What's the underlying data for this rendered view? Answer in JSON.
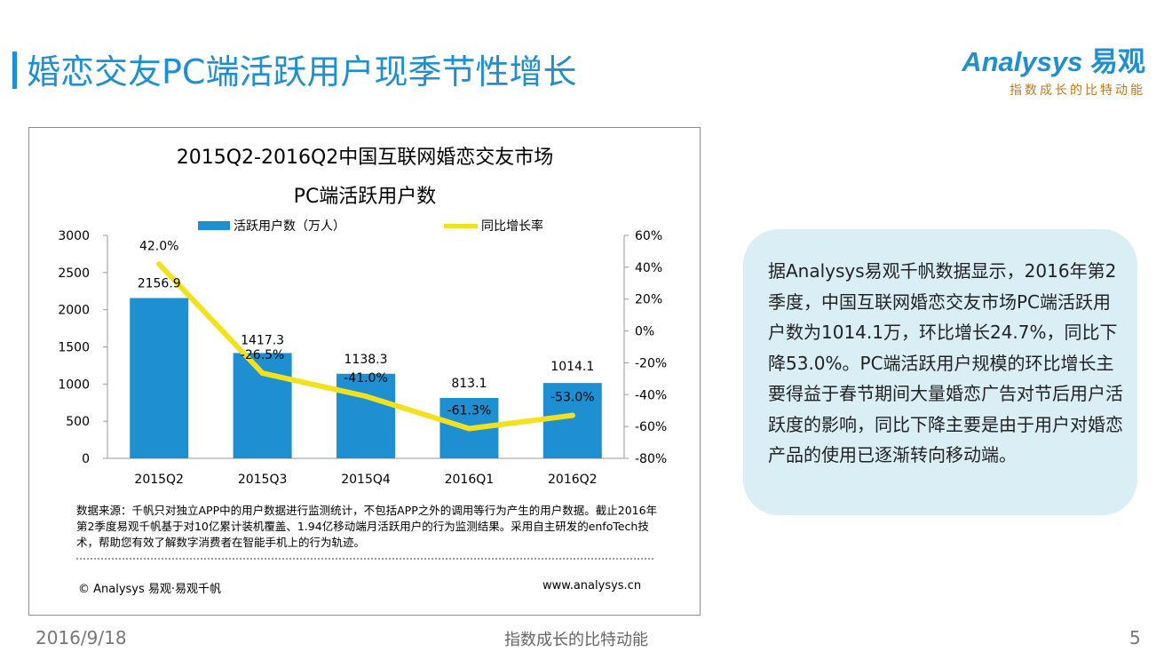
{
  "page": {
    "title": "婚恋交友PC端活跃用户现季节性增长",
    "page_number": "5",
    "date": "2016/9/18",
    "slogan": "指数成长的比特动能"
  },
  "logo": {
    "brand": "Analysys",
    "brand_cn": "易观",
    "slogan": "指数成长的比特动能",
    "color": "#1e8fd0",
    "slogan_color": "#c07a18"
  },
  "callout": {
    "text": "据Analysys易观千帆数据显示，2016年第2季度，中国互联网婚恋交友市场PC端活跃用户数为1014.1万，环比增长24.7%，同比下降53.0%。PC端活跃用户规模的环比增长主要得益于春节期间大量婚恋广告对节后用户活跃度的影响，同比下降主要是由于用户对婚恋产品的使用已逐渐转向移动端。"
  },
  "source_note": "数据来源：千帆只对独立APP中的用户数据进行监测统计，不包括APP之外的调用等行为产生的用户数据。截止2016年第2季度易观千帆基于对10亿累计装机覆盖、1.94亿移动端月活跃用户的行为监测结果。采用自主研发的enfoTech技术，帮助您有效了解数字消费者在智能手机上的行为轨迹。",
  "copyright": "© Analysys 易观·易观千帆",
  "website": "www.analysys.cn",
  "chart_data": {
    "type": "bar",
    "title_line1": "2015Q2-2016Q2中国互联网婚恋交友市场",
    "title_line2": "PC端活跃用户数",
    "categories": [
      "2015Q2",
      "2015Q3",
      "2015Q4",
      "2016Q1",
      "2016Q2"
    ],
    "series": [
      {
        "name": "活跃用户数（万人）",
        "type": "bar",
        "axis": "left",
        "values": [
          2156.9,
          1417.3,
          1138.3,
          813.1,
          1014.1
        ],
        "labels": [
          "2156.9",
          "1417.3",
          "1138.3",
          "813.1",
          "1014.1"
        ],
        "color": "#1e8fd0"
      },
      {
        "name": "同比增长率",
        "type": "line",
        "axis": "right",
        "values": [
          42.0,
          -26.5,
          -41.0,
          -61.3,
          -53.0
        ],
        "labels": [
          "42.0%",
          "-26.5%",
          "-41.0%",
          "-61.3%",
          "-53.0%"
        ],
        "color": "#f4e11e"
      }
    ],
    "y_left": {
      "min": 0,
      "max": 3000,
      "ticks": [
        "0",
        "500",
        "1000",
        "1500",
        "2000",
        "2500",
        "3000"
      ],
      "tick_values": [
        0,
        500,
        1000,
        1500,
        2000,
        2500,
        3000
      ]
    },
    "y_right": {
      "min": -80,
      "max": 60,
      "ticks": [
        "-80%",
        "-60%",
        "-40%",
        "-20%",
        "0%",
        "20%",
        "40%",
        "60%"
      ],
      "tick_values": [
        -80,
        -60,
        -40,
        -20,
        0,
        20,
        40,
        60
      ]
    },
    "legend_position": "top",
    "grid": false
  }
}
